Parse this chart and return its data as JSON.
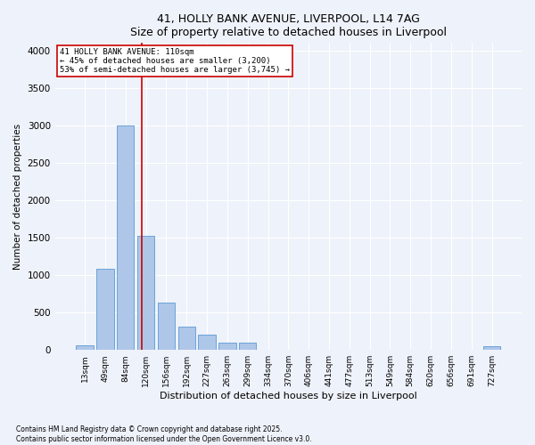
{
  "title": "41, HOLLY BANK AVENUE, LIVERPOOL, L14 7AG",
  "subtitle": "Size of property relative to detached houses in Liverpool",
  "xlabel": "Distribution of detached houses by size in Liverpool",
  "ylabel": "Number of detached properties",
  "categories": [
    "13sqm",
    "49sqm",
    "84sqm",
    "120sqm",
    "156sqm",
    "192sqm",
    "227sqm",
    "263sqm",
    "299sqm",
    "334sqm",
    "370sqm",
    "406sqm",
    "441sqm",
    "477sqm",
    "513sqm",
    "549sqm",
    "584sqm",
    "620sqm",
    "656sqm",
    "691sqm",
    "727sqm"
  ],
  "values": [
    60,
    1080,
    3000,
    1530,
    630,
    310,
    200,
    100,
    95,
    0,
    0,
    0,
    0,
    0,
    0,
    0,
    0,
    0,
    0,
    0,
    55
  ],
  "bar_color": "#aec6e8",
  "bar_edge_color": "#5b9bd5",
  "annotation_box_color": "#cc0000",
  "vline_x": 2.82,
  "vline_color": "#cc0000",
  "annotation_title": "41 HOLLY BANK AVENUE: 110sqm",
  "annotation_line1": "← 45% of detached houses are smaller (3,200)",
  "annotation_line2": "53% of semi-detached houses are larger (3,745) →",
  "ylim": [
    0,
    4100
  ],
  "yticks": [
    0,
    500,
    1000,
    1500,
    2000,
    2500,
    3000,
    3500,
    4000
  ],
  "footer_line1": "Contains HM Land Registry data © Crown copyright and database right 2025.",
  "footer_line2": "Contains public sector information licensed under the Open Government Licence v3.0.",
  "bg_color": "#eef2fa",
  "plot_bg_color": "#eef2fa"
}
